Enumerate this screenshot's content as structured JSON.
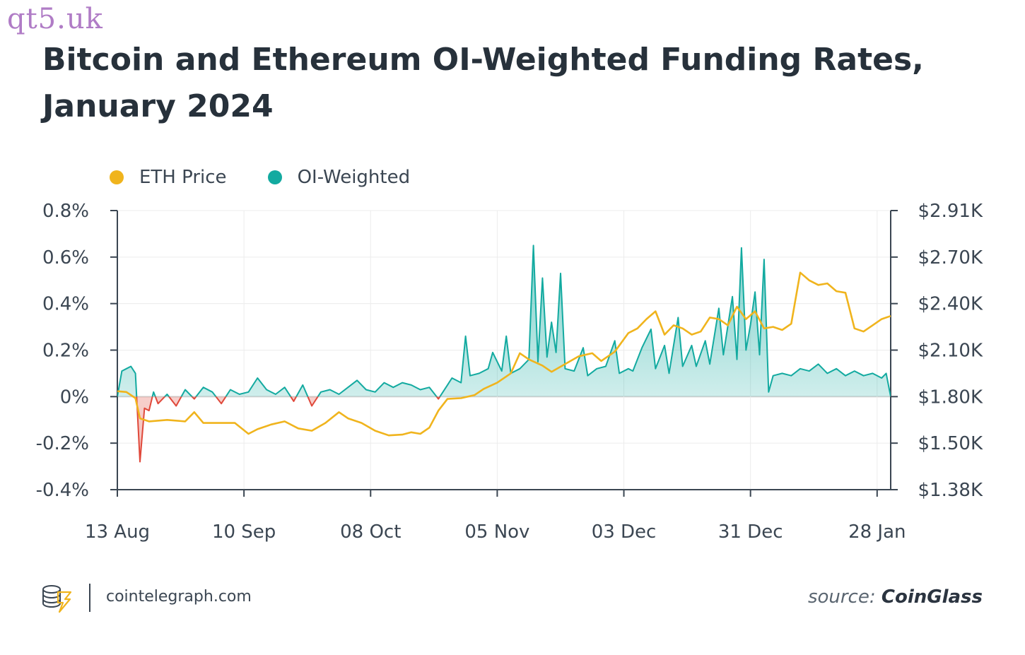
{
  "watermark": "qt5.uk",
  "title": "Bitcoin and Ethereum OI-Weighted Funding Rates, January 2024",
  "footer": {
    "site": "cointelegraph.com",
    "source_prefix": "source:",
    "source_name": "CoinGlass"
  },
  "colors": {
    "eth": "#f0b41d",
    "oi_pos": "#13aaa0",
    "oi_neg": "#e0483a",
    "axis": "#3b4652",
    "grid": "#ececec"
  },
  "chart_data": {
    "type": "line",
    "title": "Bitcoin and Ethereum OI-Weighted Funding Rates, January 2024",
    "legend_position": "top-left",
    "grid": true,
    "x_ticks": [
      "13 Aug",
      "10 Sep",
      "08 Oct",
      "05 Nov",
      "03 Dec",
      "31 Dec",
      "28 Jan"
    ],
    "x_range": [
      "2023-08-13",
      "2024-01-31"
    ],
    "y_left": {
      "ticks": [
        "0.8%",
        "0.6%",
        "0.4%",
        "0.2%",
        "0%",
        "-0.2%",
        "-0.4%"
      ],
      "range": [
        -0.4,
        0.8
      ],
      "unit": "%"
    },
    "y_right": {
      "ticks": [
        "$2.91K",
        "$2.70K",
        "$2.40K",
        "$2.10K",
        "$1.80K",
        "$1.50K",
        "$1.38K"
      ],
      "values": [
        2910,
        2700,
        2400,
        2100,
        1800,
        1500,
        1380
      ]
    },
    "series": [
      {
        "name": "ETH Price",
        "axis": "right",
        "unit": "USD",
        "points": [
          [
            "2023-08-13",
            1835
          ],
          [
            "2023-08-15",
            1830
          ],
          [
            "2023-08-17",
            1790
          ],
          [
            "2023-08-18",
            1660
          ],
          [
            "2023-08-20",
            1640
          ],
          [
            "2023-08-24",
            1650
          ],
          [
            "2023-08-28",
            1640
          ],
          [
            "2023-08-30",
            1700
          ],
          [
            "2023-09-01",
            1630
          ],
          [
            "2023-09-05",
            1630
          ],
          [
            "2023-09-08",
            1630
          ],
          [
            "2023-09-11",
            1560
          ],
          [
            "2023-09-13",
            1590
          ],
          [
            "2023-09-16",
            1620
          ],
          [
            "2023-09-19",
            1640
          ],
          [
            "2023-09-22",
            1595
          ],
          [
            "2023-09-25",
            1580
          ],
          [
            "2023-09-28",
            1630
          ],
          [
            "2023-10-01",
            1700
          ],
          [
            "2023-10-03",
            1660
          ],
          [
            "2023-10-06",
            1630
          ],
          [
            "2023-10-09",
            1580
          ],
          [
            "2023-10-12",
            1550
          ],
          [
            "2023-10-15",
            1555
          ],
          [
            "2023-10-17",
            1570
          ],
          [
            "2023-10-19",
            1560
          ],
          [
            "2023-10-21",
            1600
          ],
          [
            "2023-10-23",
            1710
          ],
          [
            "2023-10-25",
            1785
          ],
          [
            "2023-10-28",
            1790
          ],
          [
            "2023-10-31",
            1810
          ],
          [
            "2023-11-02",
            1850
          ],
          [
            "2023-11-05",
            1890
          ],
          [
            "2023-11-08",
            1950
          ],
          [
            "2023-11-10",
            2080
          ],
          [
            "2023-11-12",
            2040
          ],
          [
            "2023-11-15",
            2000
          ],
          [
            "2023-11-17",
            1960
          ],
          [
            "2023-11-20",
            2010
          ],
          [
            "2023-11-23",
            2060
          ],
          [
            "2023-11-26",
            2080
          ],
          [
            "2023-11-28",
            2030
          ],
          [
            "2023-12-01",
            2090
          ],
          [
            "2023-12-04",
            2210
          ],
          [
            "2023-12-06",
            2240
          ],
          [
            "2023-12-08",
            2300
          ],
          [
            "2023-12-10",
            2350
          ],
          [
            "2023-12-12",
            2200
          ],
          [
            "2023-12-14",
            2260
          ],
          [
            "2023-12-16",
            2240
          ],
          [
            "2023-12-18",
            2200
          ],
          [
            "2023-12-20",
            2220
          ],
          [
            "2023-12-22",
            2310
          ],
          [
            "2023-12-24",
            2300
          ],
          [
            "2023-12-26",
            2260
          ],
          [
            "2023-12-28",
            2380
          ],
          [
            "2023-12-30",
            2300
          ],
          [
            "2024-01-01",
            2350
          ],
          [
            "2024-01-03",
            2240
          ],
          [
            "2024-01-05",
            2250
          ],
          [
            "2024-01-07",
            2230
          ],
          [
            "2024-01-09",
            2270
          ],
          [
            "2024-01-11",
            2600
          ],
          [
            "2024-01-13",
            2550
          ],
          [
            "2024-01-15",
            2520
          ],
          [
            "2024-01-17",
            2530
          ],
          [
            "2024-01-19",
            2480
          ],
          [
            "2024-01-21",
            2470
          ],
          [
            "2024-01-23",
            2240
          ],
          [
            "2024-01-25",
            2220
          ],
          [
            "2024-01-27",
            2260
          ],
          [
            "2024-01-29",
            2300
          ],
          [
            "2024-01-31",
            2320
          ]
        ]
      },
      {
        "name": "OI-Weighted",
        "axis": "left",
        "unit": "%",
        "points": [
          [
            "2023-08-13",
            0.0
          ],
          [
            "2023-08-14",
            0.11
          ],
          [
            "2023-08-15",
            0.12
          ],
          [
            "2023-08-16",
            0.13
          ],
          [
            "2023-08-17",
            0.1
          ],
          [
            "2023-08-18",
            -0.28
          ],
          [
            "2023-08-19",
            -0.05
          ],
          [
            "2023-08-20",
            -0.06
          ],
          [
            "2023-08-21",
            0.02
          ],
          [
            "2023-08-22",
            -0.03
          ],
          [
            "2023-08-24",
            0.01
          ],
          [
            "2023-08-26",
            -0.04
          ],
          [
            "2023-08-28",
            0.03
          ],
          [
            "2023-08-30",
            -0.01
          ],
          [
            "2023-09-01",
            0.04
          ],
          [
            "2023-09-03",
            0.02
          ],
          [
            "2023-09-05",
            -0.03
          ],
          [
            "2023-09-07",
            0.03
          ],
          [
            "2023-09-09",
            0.01
          ],
          [
            "2023-09-11",
            0.02
          ],
          [
            "2023-09-13",
            0.08
          ],
          [
            "2023-09-15",
            0.03
          ],
          [
            "2023-09-17",
            0.01
          ],
          [
            "2023-09-19",
            0.04
          ],
          [
            "2023-09-21",
            -0.02
          ],
          [
            "2023-09-23",
            0.05
          ],
          [
            "2023-09-25",
            -0.04
          ],
          [
            "2023-09-27",
            0.02
          ],
          [
            "2023-09-29",
            0.03
          ],
          [
            "2023-10-01",
            0.01
          ],
          [
            "2023-10-03",
            0.04
          ],
          [
            "2023-10-05",
            0.07
          ],
          [
            "2023-10-07",
            0.03
          ],
          [
            "2023-10-09",
            0.02
          ],
          [
            "2023-10-11",
            0.06
          ],
          [
            "2023-10-13",
            0.04
          ],
          [
            "2023-10-15",
            0.06
          ],
          [
            "2023-10-17",
            0.05
          ],
          [
            "2023-10-19",
            0.03
          ],
          [
            "2023-10-21",
            0.04
          ],
          [
            "2023-10-23",
            -0.01
          ],
          [
            "2023-10-25",
            0.05
          ],
          [
            "2023-10-26",
            0.08
          ],
          [
            "2023-10-28",
            0.06
          ],
          [
            "2023-10-29",
            0.26
          ],
          [
            "2023-10-30",
            0.09
          ],
          [
            "2023-11-01",
            0.1
          ],
          [
            "2023-11-03",
            0.12
          ],
          [
            "2023-11-04",
            0.19
          ],
          [
            "2023-11-06",
            0.11
          ],
          [
            "2023-11-07",
            0.26
          ],
          [
            "2023-11-08",
            0.1
          ],
          [
            "2023-11-10",
            0.12
          ],
          [
            "2023-11-12",
            0.16
          ],
          [
            "2023-11-13",
            0.65
          ],
          [
            "2023-11-14",
            0.15
          ],
          [
            "2023-11-15",
            0.51
          ],
          [
            "2023-11-16",
            0.17
          ],
          [
            "2023-11-17",
            0.32
          ],
          [
            "2023-11-18",
            0.19
          ],
          [
            "2023-11-19",
            0.53
          ],
          [
            "2023-11-20",
            0.12
          ],
          [
            "2023-11-22",
            0.11
          ],
          [
            "2023-11-24",
            0.21
          ],
          [
            "2023-11-25",
            0.09
          ],
          [
            "2023-11-27",
            0.12
          ],
          [
            "2023-11-29",
            0.13
          ],
          [
            "2023-12-01",
            0.24
          ],
          [
            "2023-12-02",
            0.1
          ],
          [
            "2023-12-04",
            0.12
          ],
          [
            "2023-12-05",
            0.11
          ],
          [
            "2023-12-07",
            0.21
          ],
          [
            "2023-12-09",
            0.29
          ],
          [
            "2023-12-10",
            0.12
          ],
          [
            "2023-12-12",
            0.22
          ],
          [
            "2023-12-13",
            0.1
          ],
          [
            "2023-12-15",
            0.34
          ],
          [
            "2023-12-16",
            0.13
          ],
          [
            "2023-12-18",
            0.22
          ],
          [
            "2023-12-19",
            0.13
          ],
          [
            "2023-12-21",
            0.24
          ],
          [
            "2023-12-22",
            0.14
          ],
          [
            "2023-12-24",
            0.38
          ],
          [
            "2023-12-25",
            0.18
          ],
          [
            "2023-12-27",
            0.43
          ],
          [
            "2023-12-28",
            0.16
          ],
          [
            "2023-12-29",
            0.64
          ],
          [
            "2023-12-30",
            0.2
          ],
          [
            "2023-12-31",
            0.31
          ],
          [
            "2024-01-01",
            0.45
          ],
          [
            "2024-01-02",
            0.18
          ],
          [
            "2024-01-03",
            0.59
          ],
          [
            "2024-01-04",
            0.02
          ],
          [
            "2024-01-05",
            0.09
          ],
          [
            "2024-01-07",
            0.1
          ],
          [
            "2024-01-09",
            0.09
          ],
          [
            "2024-01-11",
            0.12
          ],
          [
            "2024-01-13",
            0.11
          ],
          [
            "2024-01-15",
            0.14
          ],
          [
            "2024-01-17",
            0.1
          ],
          [
            "2024-01-19",
            0.12
          ],
          [
            "2024-01-21",
            0.09
          ],
          [
            "2024-01-23",
            0.11
          ],
          [
            "2024-01-25",
            0.09
          ],
          [
            "2024-01-27",
            0.1
          ],
          [
            "2024-01-29",
            0.08
          ],
          [
            "2024-01-30",
            0.1
          ],
          [
            "2024-01-31",
            0.0
          ]
        ]
      }
    ]
  }
}
